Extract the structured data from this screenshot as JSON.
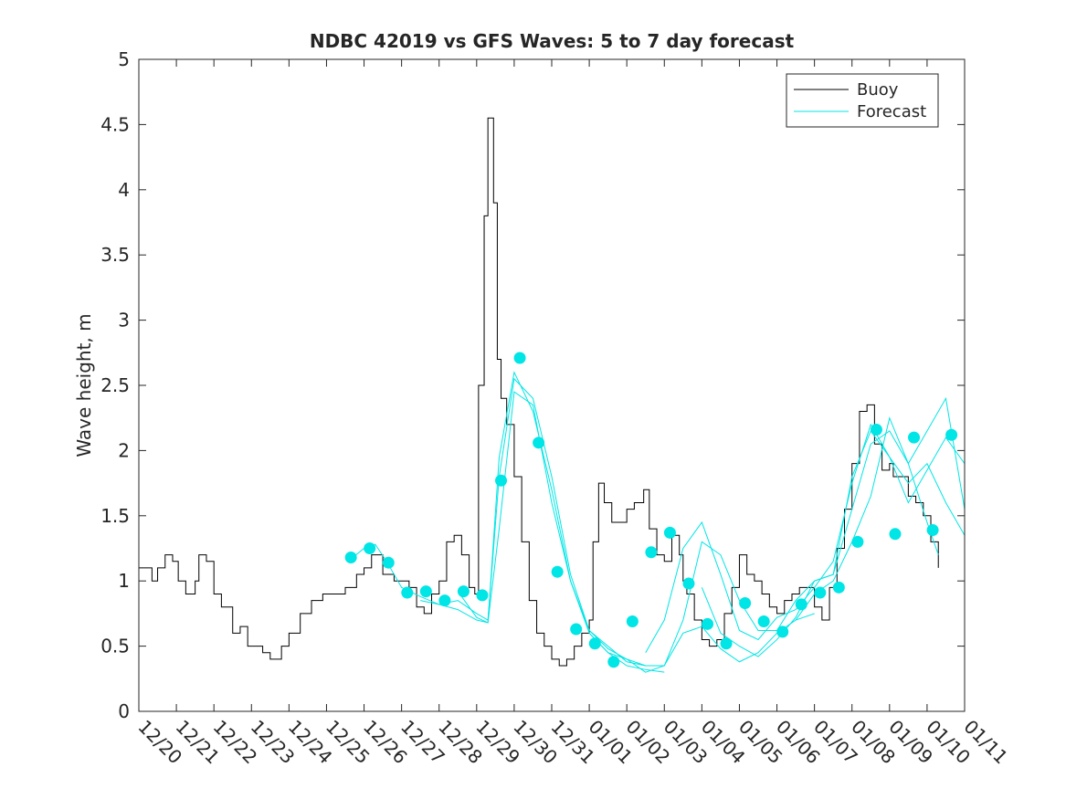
{
  "chart_data": {
    "type": "line",
    "title": "NDBC 42019 vs GFS Waves: 5 to 7 day forecast",
    "xlabel": "",
    "ylabel": "Wave height, m",
    "xlim": [
      0,
      22
    ],
    "ylim": [
      0,
      5
    ],
    "y_ticks": [
      "0",
      "0.5",
      "1",
      "1.5",
      "2",
      "2.5",
      "3",
      "3.5",
      "4",
      "4.5",
      "5"
    ],
    "x_tick_labels": [
      "12/20",
      "12/21",
      "12/22",
      "12/23",
      "12/24",
      "12/25",
      "12/26",
      "12/27",
      "12/28",
      "12/29",
      "12/30",
      "12/31",
      "01/01",
      "01/02",
      "01/03",
      "01/04",
      "01/05",
      "01/06",
      "01/07",
      "01/08",
      "01/09",
      "01/10",
      "01/11"
    ],
    "legend": {
      "position": "top-right",
      "entries": [
        "Buoy",
        "Forecast"
      ]
    },
    "colors": {
      "buoy": "#000000",
      "forecast": "#00e5e5",
      "marker": "#00e5e5",
      "axis": "#262626"
    },
    "series": [
      {
        "name": "Buoy",
        "x": [
          0,
          0.2,
          0.35,
          0.5,
          0.7,
          0.9,
          1.05,
          1.25,
          1.5,
          1.6,
          1.8,
          2.0,
          2.2,
          2.5,
          2.7,
          2.9,
          3.1,
          3.3,
          3.5,
          3.8,
          4.0,
          4.3,
          4.6,
          4.9,
          5.2,
          5.5,
          5.8,
          6.0,
          6.2,
          6.5,
          6.8,
          7.0,
          7.2,
          7.4,
          7.6,
          7.8,
          8.0,
          8.2,
          8.4,
          8.6,
          8.8,
          8.95,
          9.05,
          9.2,
          9.3,
          9.45,
          9.55,
          9.65,
          9.8,
          10.0,
          10.2,
          10.4,
          10.6,
          10.8,
          11.0,
          11.2,
          11.4,
          11.6,
          11.8,
          12.0,
          12.1,
          12.25,
          12.4,
          12.6,
          12.8,
          13.0,
          13.2,
          13.35,
          13.45,
          13.6,
          13.8,
          14.0,
          14.2,
          14.4,
          14.5,
          14.6,
          14.8,
          15.0,
          15.2,
          15.4,
          15.6,
          15.8,
          16.0,
          16.2,
          16.4,
          16.6,
          16.8,
          17.0,
          17.2,
          17.4,
          17.6,
          17.8,
          18.0,
          18.2,
          18.4,
          18.6,
          18.8,
          19.0,
          19.2,
          19.4,
          19.6,
          19.8,
          20.0,
          20.1,
          20.3,
          20.5,
          20.7,
          20.9,
          21.1,
          21.3
        ],
        "values": [
          1.1,
          1.1,
          1.0,
          1.1,
          1.2,
          1.15,
          1.0,
          0.9,
          1.0,
          1.2,
          1.15,
          0.9,
          0.8,
          0.6,
          0.65,
          0.5,
          0.5,
          0.45,
          0.4,
          0.5,
          0.6,
          0.75,
          0.85,
          0.9,
          0.9,
          0.95,
          1.05,
          1.1,
          1.2,
          1.05,
          1.0,
          1.0,
          0.95,
          0.8,
          0.75,
          0.9,
          1.0,
          1.3,
          1.35,
          1.2,
          0.95,
          0.9,
          2.5,
          3.8,
          4.55,
          3.9,
          2.7,
          2.4,
          2.2,
          1.8,
          1.3,
          0.85,
          0.6,
          0.5,
          0.4,
          0.35,
          0.4,
          0.5,
          0.6,
          0.7,
          1.3,
          1.75,
          1.6,
          1.45,
          1.45,
          1.55,
          1.6,
          1.6,
          1.7,
          1.4,
          1.2,
          1.15,
          1.35,
          1.2,
          1.0,
          0.9,
          0.7,
          0.55,
          0.5,
          0.55,
          0.75,
          0.95,
          1.2,
          1.05,
          1.0,
          0.9,
          0.8,
          0.75,
          0.85,
          0.9,
          0.95,
          0.95,
          0.8,
          0.7,
          0.95,
          1.25,
          1.55,
          1.9,
          2.3,
          2.35,
          2.05,
          1.85,
          1.9,
          1.8,
          1.8,
          1.65,
          1.6,
          1.5,
          1.3,
          1.1
        ]
      },
      {
        "name": "Forecast",
        "runs": [
          {
            "x": [
              5.7,
              6.0,
              6.3,
              6.6,
              7.0,
              7.5,
              8.0,
              8.5,
              9.0,
              9.3,
              9.6,
              10.0,
              10.5,
              11.0,
              11.5,
              12.0,
              12.5,
              13.0,
              13.5
            ],
            "values": [
              1.18,
              1.25,
              1.28,
              1.15,
              0.95,
              0.88,
              0.82,
              0.85,
              0.75,
              0.7,
              1.8,
              2.55,
              2.4,
              1.8,
              1.05,
              0.62,
              0.5,
              0.38,
              0.35
            ]
          },
          {
            "x": [
              7.5,
              8.0,
              8.5,
              9.0,
              9.3,
              9.6,
              10.0,
              10.5,
              11.0,
              11.5,
              12.0,
              12.5,
              13.0,
              13.5,
              14.0
            ],
            "values": [
              0.85,
              0.82,
              0.78,
              0.7,
              0.68,
              1.95,
              2.6,
              2.3,
              1.7,
              1.0,
              0.6,
              0.45,
              0.35,
              0.32,
              0.3
            ]
          },
          {
            "x": [
              8.5,
              9.0,
              9.3,
              9.6,
              10.0,
              10.5,
              11.0,
              11.5,
              12.0,
              12.5,
              13.0,
              13.5,
              14.0,
              14.5,
              15.0,
              15.5,
              16.0,
              16.5,
              17.0,
              17.5,
              18.0
            ],
            "values": [
              0.92,
              0.72,
              0.68,
              1.4,
              2.45,
              2.35,
              1.6,
              1.0,
              0.62,
              0.48,
              0.4,
              0.3,
              0.35,
              0.6,
              0.65,
              0.48,
              0.38,
              0.45,
              0.6,
              0.7,
              0.75
            ]
          },
          {
            "x": [
              12.0,
              12.5,
              13.0,
              13.5,
              14.0,
              14.5,
              15.0,
              15.5,
              16.0,
              16.5,
              17.0,
              17.5,
              18.0,
              18.5,
              19.0,
              19.5,
              20.0,
              20.5,
              21.0,
              21.5,
              22.0
            ],
            "values": [
              0.6,
              0.45,
              0.4,
              0.35,
              0.35,
              0.7,
              1.3,
              1.2,
              0.85,
              0.62,
              0.62,
              0.85,
              1.0,
              1.05,
              1.55,
              2.05,
              2.15,
              1.9,
              2.15,
              2.4,
              1.55
            ]
          },
          {
            "x": [
              13.5,
              14.0,
              14.5,
              15.0,
              15.5,
              16.0,
              16.5,
              17.0,
              17.5,
              18.0,
              18.5,
              19.0,
              19.5,
              20.0,
              20.5,
              21.0,
              21.5,
              22.0
            ],
            "values": [
              0.45,
              0.7,
              1.25,
              1.45,
              1.05,
              0.62,
              0.55,
              0.72,
              0.78,
              0.95,
              1.15,
              1.75,
              2.2,
              1.95,
              1.75,
              1.9,
              1.6,
              1.35
            ]
          },
          {
            "x": [
              15.0,
              15.5,
              16.0,
              16.5,
              17.0,
              17.5,
              18.0,
              18.5,
              19.0,
              19.5,
              20.0,
              20.5,
              21.0,
              21.5,
              22.0
            ],
            "values": [
              0.95,
              0.6,
              0.5,
              0.42,
              0.55,
              0.72,
              1.0,
              1.05,
              1.8,
              2.15,
              1.95,
              1.6,
              1.85,
              2.1,
              1.9
            ]
          },
          {
            "x": [
              17.5,
              18.0,
              18.5,
              19.0,
              19.5,
              20.0,
              20.5,
              21.0,
              21.3
            ],
            "values": [
              0.7,
              0.9,
              1.0,
              1.3,
              1.65,
              2.25,
              1.9,
              1.45,
              1.2
            ]
          }
        ]
      },
      {
        "name": "Forecast markers",
        "x": [
          5.65,
          6.15,
          6.65,
          7.15,
          7.65,
          8.15,
          8.65,
          9.15,
          9.65,
          10.15,
          10.65,
          11.15,
          11.65,
          12.15,
          12.65,
          13.15,
          13.65,
          14.15,
          14.65,
          15.15,
          15.65,
          16.15,
          16.65,
          17.15,
          17.65,
          18.15,
          18.65,
          19.15,
          19.65,
          20.15,
          20.65,
          21.15,
          21.65
        ],
        "values": [
          1.18,
          1.25,
          1.14,
          0.91,
          0.92,
          0.85,
          0.92,
          0.89,
          1.77,
          2.71,
          2.06,
          1.07,
          0.63,
          0.52,
          0.38,
          0.69,
          1.22,
          1.37,
          0.98,
          0.67,
          0.52,
          0.83,
          0.69,
          0.61,
          0.82,
          0.91,
          0.95,
          1.3,
          2.16,
          1.36,
          2.1,
          1.39,
          2.12
        ]
      }
    ]
  }
}
